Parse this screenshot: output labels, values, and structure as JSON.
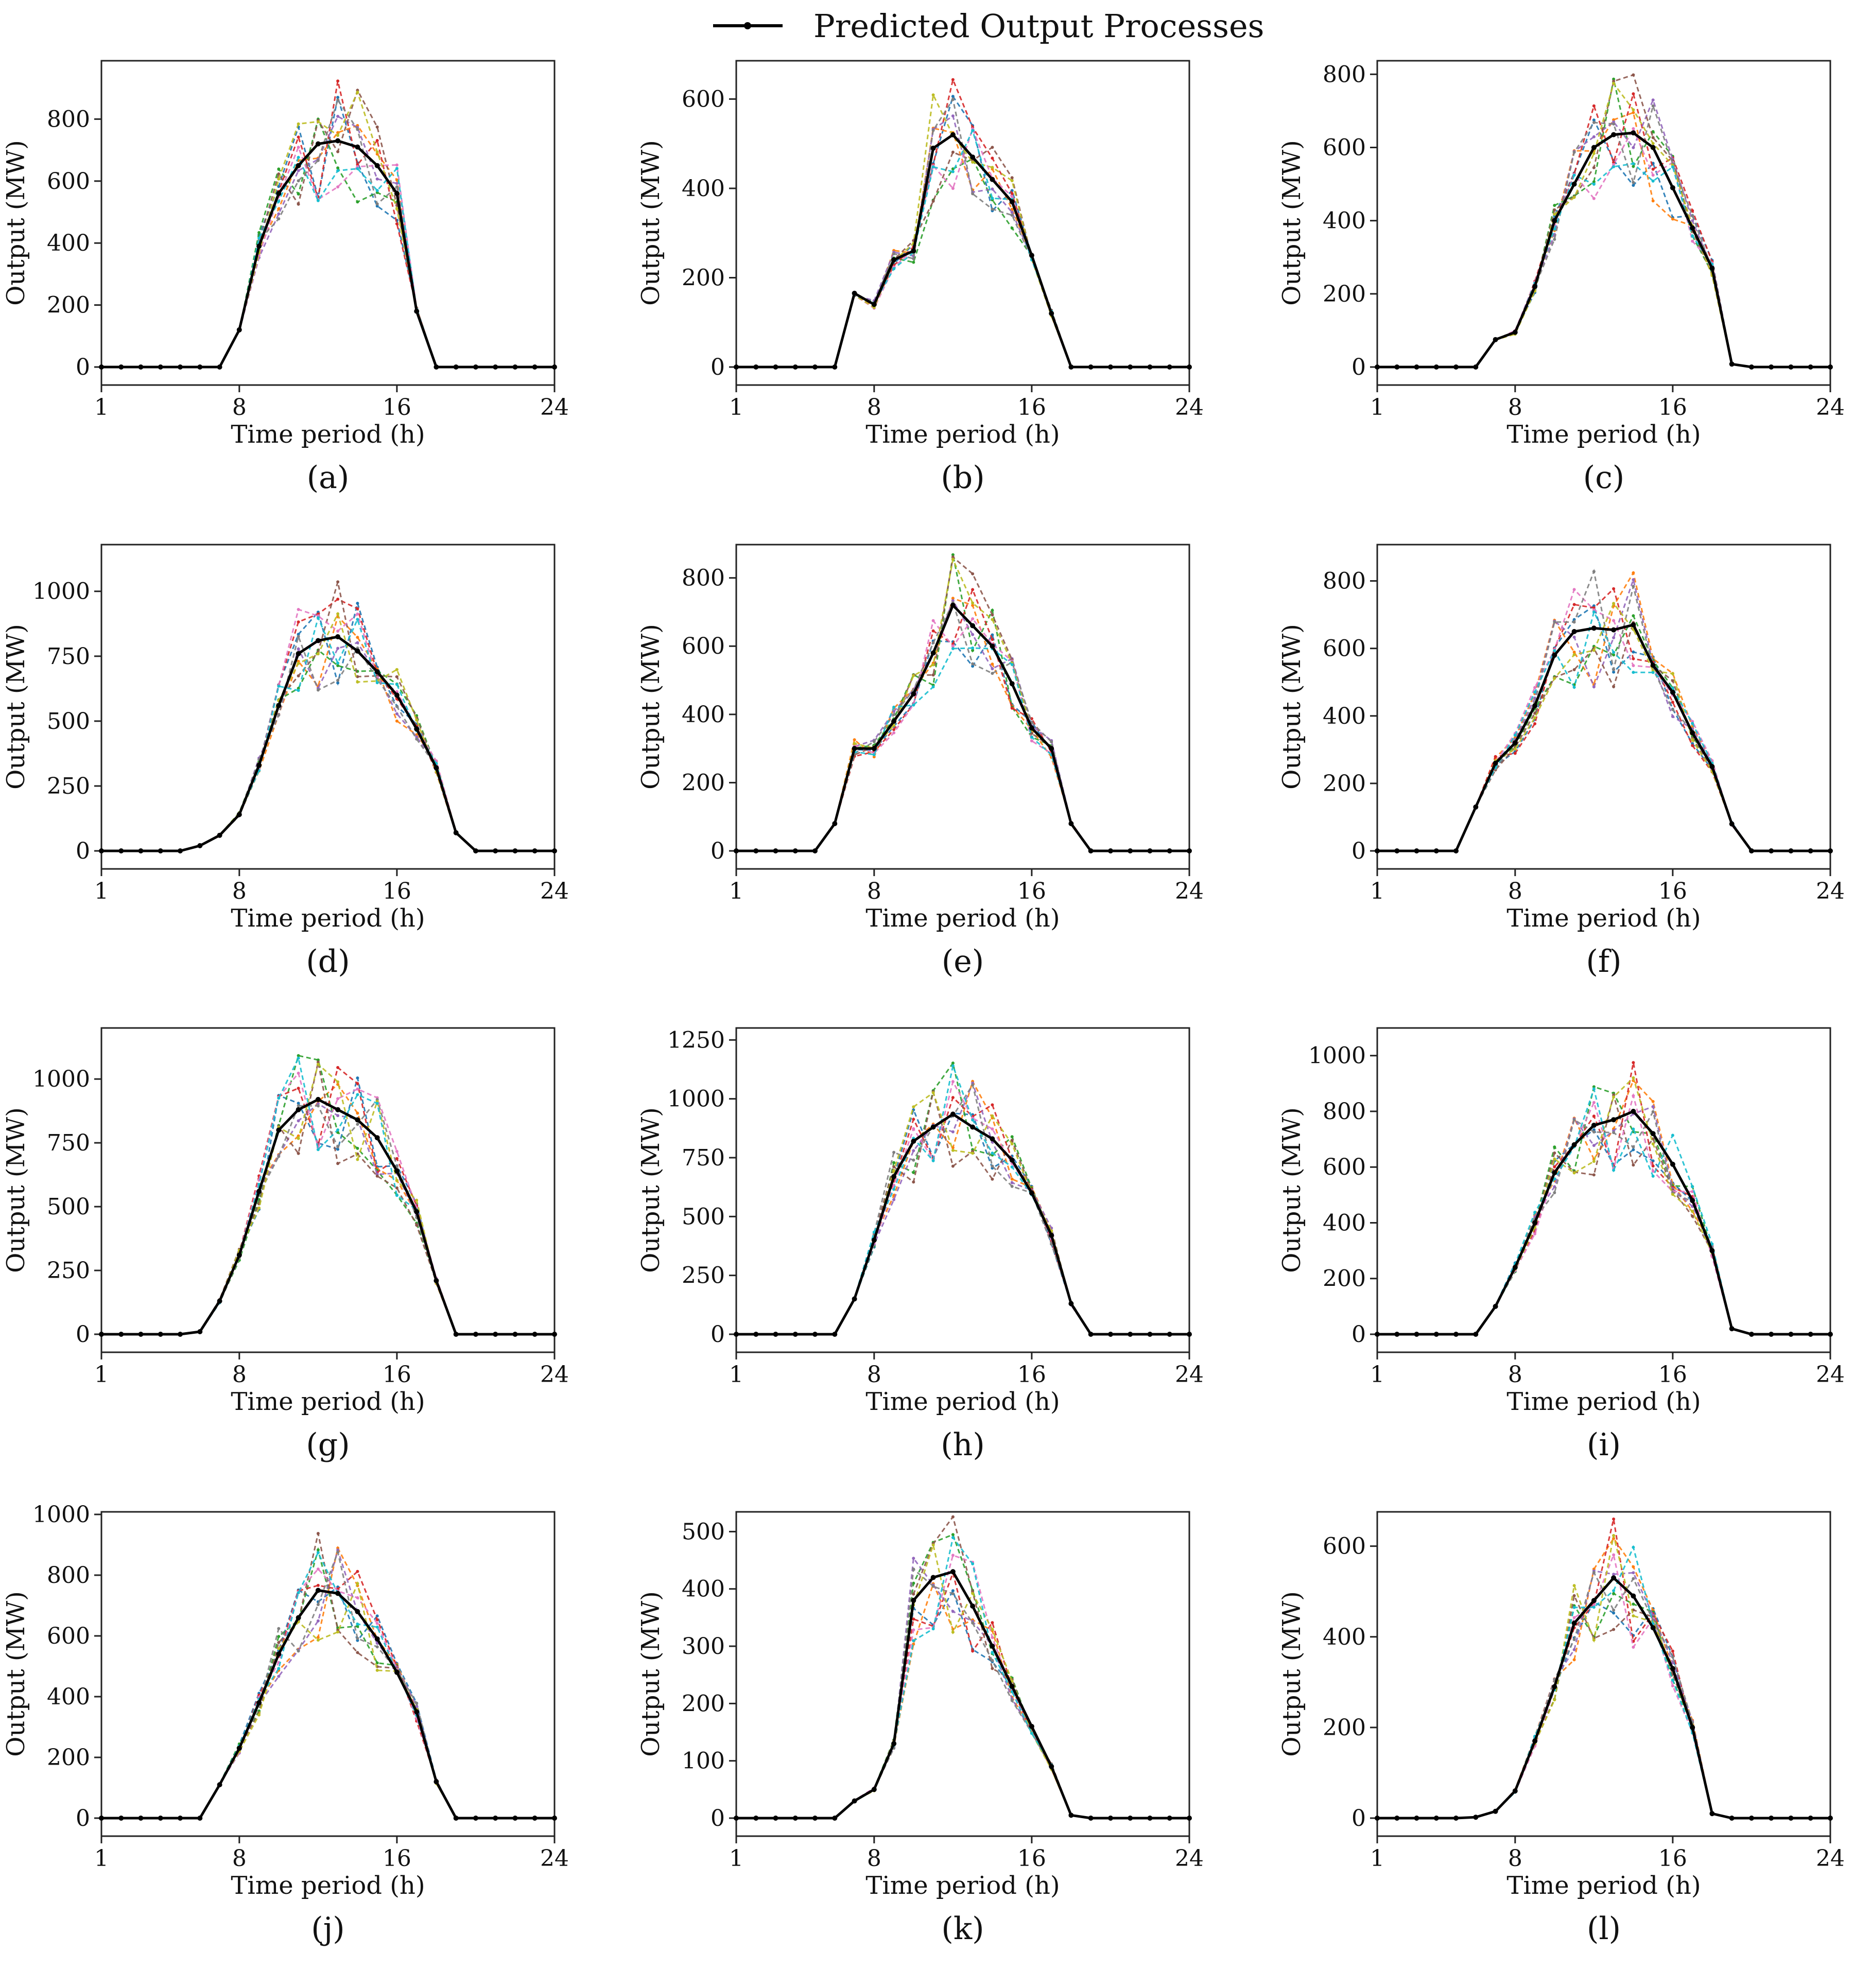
{
  "legend": {
    "label": "Predicted Output Processes",
    "color": "#000000"
  },
  "scenario_colors": [
    "#1f77b4",
    "#ff7f0e",
    "#2ca02c",
    "#d62728",
    "#9467bd",
    "#8c564b",
    "#e377c2",
    "#7f7f7f",
    "#bcbd22",
    "#17becf"
  ],
  "chart_data": [
    {
      "type": "line",
      "caption": "(a)",
      "xlabel": "Time period (h)",
      "ylabel": "Output (MW)",
      "xlim": [
        1,
        24
      ],
      "xticks": [
        1,
        8,
        16,
        24
      ],
      "ylim": [
        -50,
        980
      ],
      "yticks": [
        0,
        200,
        400,
        600,
        800
      ],
      "x": [
        1,
        2,
        3,
        4,
        5,
        6,
        7,
        8,
        9,
        10,
        11,
        12,
        13,
        14,
        15,
        16,
        17,
        18,
        19,
        20,
        21,
        22,
        23,
        24
      ],
      "series": [
        {
          "name": "Predicted Output Processes",
          "values": [
            0,
            0,
            0,
            0,
            0,
            0,
            0,
            120,
            390,
            560,
            650,
            720,
            730,
            710,
            650,
            560,
            180,
            0,
            0,
            0,
            0,
            0,
            0,
            0
          ]
        }
      ]
    },
    {
      "type": "line",
      "caption": "(b)",
      "xlabel": "Time period (h)",
      "ylabel": "Output (MW)",
      "xlim": [
        1,
        24
      ],
      "xticks": [
        1,
        8,
        16,
        24
      ],
      "ylim": [
        -30,
        680
      ],
      "yticks": [
        0,
        200,
        400,
        600
      ],
      "x": [
        1,
        2,
        3,
        4,
        5,
        6,
        7,
        8,
        9,
        10,
        11,
        12,
        13,
        14,
        15,
        16,
        17,
        18,
        19,
        20,
        21,
        22,
        23,
        24
      ],
      "series": [
        {
          "name": "Predicted Output Processes",
          "values": [
            0,
            0,
            0,
            0,
            0,
            0,
            165,
            140,
            240,
            260,
            490,
            520,
            470,
            420,
            370,
            250,
            120,
            0,
            0,
            0,
            0,
            0,
            0,
            0
          ]
        }
      ]
    },
    {
      "type": "line",
      "caption": "(c)",
      "xlabel": "Time period (h)",
      "ylabel": "Output (MW)",
      "xlim": [
        1,
        24
      ],
      "xticks": [
        1,
        8,
        16,
        24
      ],
      "ylim": [
        -40,
        830
      ],
      "yticks": [
        0,
        200,
        400,
        600,
        800
      ],
      "x": [
        1,
        2,
        3,
        4,
        5,
        6,
        7,
        8,
        9,
        10,
        11,
        12,
        13,
        14,
        15,
        16,
        17,
        18,
        19,
        20,
        21,
        22,
        23,
        24
      ],
      "series": [
        {
          "name": "Predicted Output Processes",
          "values": [
            0,
            0,
            0,
            0,
            0,
            0,
            75,
            95,
            220,
            400,
            500,
            600,
            635,
            640,
            600,
            490,
            380,
            270,
            8,
            0,
            0,
            0,
            0,
            0
          ]
        }
      ]
    },
    {
      "type": "line",
      "caption": "(d)",
      "xlabel": "Time period (h)",
      "ylabel": "Output (MW)",
      "xlim": [
        1,
        24
      ],
      "xticks": [
        1,
        8,
        16,
        24
      ],
      "ylim": [
        -60,
        1170
      ],
      "yticks": [
        0,
        250,
        500,
        750,
        1000
      ],
      "x": [
        1,
        2,
        3,
        4,
        5,
        6,
        7,
        8,
        9,
        10,
        11,
        12,
        13,
        14,
        15,
        16,
        17,
        18,
        19,
        20,
        21,
        22,
        23,
        24
      ],
      "series": [
        {
          "name": "Predicted Output Processes",
          "values": [
            0,
            0,
            0,
            0,
            0,
            20,
            60,
            140,
            330,
            560,
            760,
            810,
            825,
            770,
            690,
            600,
            470,
            320,
            70,
            0,
            0,
            0,
            0,
            0
          ]
        }
      ]
    },
    {
      "type": "line",
      "caption": "(e)",
      "xlabel": "Time period (h)",
      "ylabel": "Output (MW)",
      "xlim": [
        1,
        24
      ],
      "xticks": [
        1,
        8,
        16,
        24
      ],
      "ylim": [
        -40,
        890
      ],
      "yticks": [
        0,
        200,
        400,
        600,
        800
      ],
      "x": [
        1,
        2,
        3,
        4,
        5,
        6,
        7,
        8,
        9,
        10,
        11,
        12,
        13,
        14,
        15,
        16,
        17,
        18,
        19,
        20,
        21,
        22,
        23,
        24
      ],
      "series": [
        {
          "name": "Predicted Output Processes",
          "values": [
            0,
            0,
            0,
            0,
            0,
            80,
            300,
            300,
            380,
            460,
            580,
            720,
            660,
            600,
            490,
            360,
            300,
            80,
            0,
            0,
            0,
            0,
            0,
            0
          ]
        }
      ]
    },
    {
      "type": "line",
      "caption": "(f)",
      "xlabel": "Time period (h)",
      "ylabel": "Output (MW)",
      "xlim": [
        1,
        24
      ],
      "xticks": [
        1,
        8,
        16,
        24
      ],
      "ylim": [
        -40,
        900
      ],
      "yticks": [
        0,
        200,
        400,
        600,
        800
      ],
      "x": [
        1,
        2,
        3,
        4,
        5,
        6,
        7,
        8,
        9,
        10,
        11,
        12,
        13,
        14,
        15,
        16,
        17,
        18,
        19,
        20,
        21,
        22,
        23,
        24
      ],
      "series": [
        {
          "name": "Predicted Output Processes",
          "values": [
            0,
            0,
            0,
            0,
            0,
            130,
            260,
            320,
            430,
            580,
            650,
            660,
            655,
            670,
            550,
            470,
            350,
            250,
            80,
            0,
            0,
            0,
            0,
            0
          ]
        }
      ]
    },
    {
      "type": "line",
      "caption": "(g)",
      "xlabel": "Time period (h)",
      "ylabel": "Output (MW)",
      "xlim": [
        1,
        24
      ],
      "xticks": [
        1,
        8,
        16,
        24
      ],
      "ylim": [
        -60,
        1190
      ],
      "yticks": [
        0,
        250,
        500,
        750,
        1000
      ],
      "x": [
        1,
        2,
        3,
        4,
        5,
        6,
        7,
        8,
        9,
        10,
        11,
        12,
        13,
        14,
        15,
        16,
        17,
        18,
        19,
        20,
        21,
        22,
        23,
        24
      ],
      "series": [
        {
          "name": "Predicted Output Processes",
          "values": [
            0,
            0,
            0,
            0,
            0,
            10,
            130,
            310,
            560,
            800,
            880,
            920,
            880,
            840,
            770,
            640,
            480,
            210,
            0,
            0,
            0,
            0,
            0,
            0
          ]
        }
      ]
    },
    {
      "type": "line",
      "caption": "(h)",
      "xlabel": "Time period (h)",
      "ylabel": "Output (MW)",
      "xlim": [
        1,
        24
      ],
      "xticks": [
        1,
        8,
        16,
        24
      ],
      "ylim": [
        -60,
        1290
      ],
      "yticks": [
        0,
        250,
        500,
        750,
        1000,
        1250
      ],
      "x": [
        1,
        2,
        3,
        4,
        5,
        6,
        7,
        8,
        9,
        10,
        11,
        12,
        13,
        14,
        15,
        16,
        17,
        18,
        19,
        20,
        21,
        22,
        23,
        24
      ],
      "series": [
        {
          "name": "Predicted Output Processes",
          "values": [
            0,
            0,
            0,
            0,
            0,
            0,
            150,
            400,
            670,
            820,
            880,
            935,
            880,
            830,
            740,
            600,
            420,
            130,
            0,
            0,
            0,
            0,
            0,
            0
          ]
        }
      ]
    },
    {
      "type": "line",
      "caption": "(i)",
      "xlabel": "Time period (h)",
      "ylabel": "Output (MW)",
      "xlim": [
        1,
        24
      ],
      "xticks": [
        1,
        8,
        16,
        24
      ],
      "ylim": [
        -50,
        1090
      ],
      "yticks": [
        0,
        200,
        400,
        600,
        800,
        1000
      ],
      "x": [
        1,
        2,
        3,
        4,
        5,
        6,
        7,
        8,
        9,
        10,
        11,
        12,
        13,
        14,
        15,
        16,
        17,
        18,
        19,
        20,
        21,
        22,
        23,
        24
      ],
      "series": [
        {
          "name": "Predicted Output Processes",
          "values": [
            0,
            0,
            0,
            0,
            0,
            0,
            100,
            240,
            400,
            580,
            680,
            750,
            770,
            800,
            720,
            610,
            480,
            300,
            20,
            0,
            0,
            0,
            0,
            0
          ]
        }
      ]
    },
    {
      "type": "line",
      "caption": "(j)",
      "xlabel": "Time period (h)",
      "ylabel": "Output (MW)",
      "xlim": [
        1,
        24
      ],
      "xticks": [
        1,
        8,
        16,
        24
      ],
      "ylim": [
        -50,
        1000
      ],
      "yticks": [
        0,
        200,
        400,
        600,
        800,
        1000
      ],
      "x": [
        1,
        2,
        3,
        4,
        5,
        6,
        7,
        8,
        9,
        10,
        11,
        12,
        13,
        14,
        15,
        16,
        17,
        18,
        19,
        20,
        21,
        22,
        23,
        24
      ],
      "series": [
        {
          "name": "Predicted Output Processes",
          "values": [
            0,
            0,
            0,
            0,
            0,
            0,
            110,
            230,
            380,
            540,
            660,
            750,
            740,
            680,
            590,
            480,
            350,
            120,
            0,
            0,
            0,
            0,
            0,
            0
          ]
        }
      ]
    },
    {
      "type": "line",
      "caption": "(k)",
      "xlabel": "Time period (h)",
      "ylabel": "Output (MW)",
      "xlim": [
        1,
        24
      ],
      "xticks": [
        1,
        8,
        16,
        24
      ],
      "ylim": [
        -20,
        530
      ],
      "yticks": [
        0,
        100,
        200,
        300,
        400,
        500
      ],
      "x": [
        1,
        2,
        3,
        4,
        5,
        6,
        7,
        8,
        9,
        10,
        11,
        12,
        13,
        14,
        15,
        16,
        17,
        18,
        19,
        20,
        21,
        22,
        23,
        24
      ],
      "series": [
        {
          "name": "Predicted Output Processes",
          "values": [
            0,
            0,
            0,
            0,
            0,
            0,
            30,
            50,
            130,
            380,
            420,
            430,
            370,
            300,
            230,
            160,
            90,
            5,
            0,
            0,
            0,
            0,
            0,
            0
          ]
        }
      ]
    },
    {
      "type": "line",
      "caption": "(l)",
      "xlabel": "Time period (h)",
      "ylabel": "Output (MW)",
      "xlim": [
        1,
        24
      ],
      "xticks": [
        1,
        8,
        16,
        24
      ],
      "ylim": [
        -30,
        670
      ],
      "yticks": [
        0,
        200,
        400,
        600
      ],
      "x": [
        1,
        2,
        3,
        4,
        5,
        6,
        7,
        8,
        9,
        10,
        11,
        12,
        13,
        14,
        15,
        16,
        17,
        18,
        19,
        20,
        21,
        22,
        23,
        24
      ],
      "series": [
        {
          "name": "Predicted Output Processes",
          "values": [
            0,
            0,
            0,
            0,
            0,
            2,
            15,
            60,
            170,
            290,
            430,
            480,
            530,
            490,
            420,
            330,
            200,
            10,
            0,
            0,
            0,
            0,
            0,
            0
          ]
        }
      ]
    }
  ]
}
